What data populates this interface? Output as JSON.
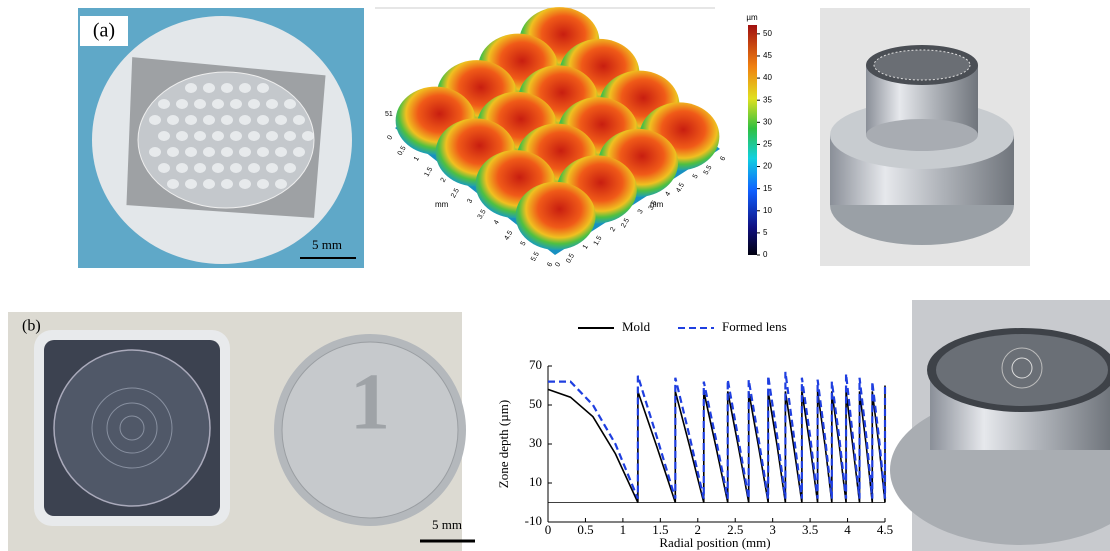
{
  "panel_a": {
    "label": "(a)",
    "scale_bar": "5 mm",
    "surface_plot": {
      "z_label": "51",
      "x_ticks": [
        "0",
        "0.5",
        "1",
        "1.5",
        "2",
        "2.5",
        "3",
        "3.5",
        "4",
        "4.5",
        "5",
        "5.5",
        "6"
      ],
      "y_ticks": [
        "0",
        "0.5",
        "1",
        "1.5",
        "2",
        "2.5",
        "3",
        "3.5",
        "4",
        "4.5",
        "5",
        "5.5",
        "6"
      ],
      "x_unit": "mm",
      "y_unit": "mm",
      "colorbar": {
        "unit": "µm",
        "lim": [
          0,
          52
        ],
        "ticks": [
          0,
          5,
          10,
          15,
          20,
          25,
          30,
          35,
          40,
          45,
          50
        ]
      }
    }
  },
  "panel_b": {
    "label": "(b)",
    "scale_bar": "5 mm",
    "coin_numeral": "1"
  },
  "chart_data": {
    "type": "line",
    "x_label": "Radial position (mm)",
    "y_label": "Zone depth (µm)",
    "x": [
      0,
      0.3,
      0.6,
      0.9,
      1.2,
      1.2,
      1.45,
      1.7,
      1.7,
      1.89,
      2.08,
      2.08,
      2.24,
      2.4,
      2.4,
      2.54,
      2.68,
      2.68,
      2.81,
      2.94,
      2.94,
      3.06,
      3.17,
      3.17,
      3.28,
      3.39,
      3.39,
      3.5,
      3.6,
      3.6,
      3.7,
      3.79,
      3.79,
      3.89,
      3.98,
      3.98,
      4.07,
      4.16,
      4.16,
      4.25,
      4.33,
      4.33,
      4.42,
      4.5,
      4.5
    ],
    "series": [
      {
        "name": "Mold",
        "color": "#000000",
        "dash": false,
        "values": [
          58,
          54,
          44,
          25,
          0,
          57,
          29,
          0,
          57,
          29,
          0,
          57,
          29,
          0,
          57,
          29,
          0,
          57,
          29,
          0,
          57,
          29,
          0,
          57,
          29,
          0,
          57,
          29,
          0,
          57,
          29,
          0,
          57,
          29,
          0,
          57,
          29,
          0,
          57,
          29,
          0,
          57,
          29,
          0,
          60
        ]
      },
      {
        "name": "Formed lens",
        "color": "#1f3fe0",
        "dash": true,
        "values": [
          62,
          62,
          50,
          30,
          2,
          65,
          34,
          2,
          64,
          34,
          2,
          62,
          33,
          2,
          63,
          33,
          2,
          63,
          33,
          2,
          65,
          34,
          2,
          67,
          35,
          2,
          64,
          34,
          2,
          63,
          33,
          2,
          62,
          33,
          2,
          66,
          34,
          2,
          64,
          34,
          2,
          62,
          33,
          2,
          60
        ]
      }
    ],
    "xlim": [
      0,
      4.5
    ],
    "ylim": [
      -10,
      70
    ],
    "xticks": [
      0,
      0.5,
      1,
      1.5,
      2,
      2.5,
      3,
      3.5,
      4,
      4.5
    ],
    "yticks": [
      -10,
      10,
      30,
      50,
      70
    ]
  }
}
